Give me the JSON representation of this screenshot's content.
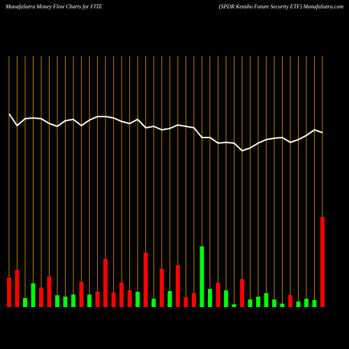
{
  "chart_data": {
    "type": "bar",
    "title": "MunafaSutra  Money Flow  Charts for FITE",
    "subtitle": "(SPDR Kensho  Future   Security ETF) MunafaSutra.com",
    "categories": [
      null,
      null,
      null,
      null,
      null,
      null,
      null,
      null,
      null,
      null,
      null,
      null,
      null,
      null,
      null,
      null,
      null,
      null,
      null,
      null,
      null,
      null,
      null,
      null,
      null,
      null,
      null,
      null,
      null,
      null,
      null,
      null,
      null,
      null,
      null,
      null,
      null,
      null,
      null,
      null
    ],
    "series": [
      {
        "color": "bars",
        "values": [
          42,
          53,
          13,
          34,
          28,
          44,
          17,
          15,
          18,
          36,
          18,
          22,
          69,
          21,
          35,
          24,
          22,
          78,
          12,
          55,
          23,
          60,
          14,
          20,
          87,
          26,
          35,
          24,
          4,
          40,
          11,
          15,
          20,
          11,
          5,
          17,
          8,
          12,
          10,
          129
        ],
        "colors": [
          "#ff0000",
          "#ff0000",
          "#00ff00",
          "#00ff00",
          "#ff0000",
          "#ff0000",
          "#00ff00",
          "#00ff00",
          "#00ff00",
          "#ff0000",
          "#00ff00",
          "#ff0000",
          "#ff0000",
          "#ff0000",
          "#ff0000",
          "#ff0000",
          "#00ff00",
          "#ff0000",
          "#00ff00",
          "#ff0000",
          "#00ff00",
          "#ff0000",
          "#ff0000",
          "#ff0000",
          "#00ff00",
          "#00ff00",
          "#ff0000",
          "#00ff00",
          "#00ff00",
          "#ff0000",
          "#00ff00",
          "#00ff00",
          "#00ff00",
          "#00ff00",
          "#00ff00",
          "#ff0000",
          "#00ff00",
          "#00ff00",
          "#00ff00",
          "#ff0000"
        ]
      },
      {
        "type": "line",
        "color": "#ffffff",
        "values": [
          277,
          260,
          270,
          271,
          270,
          263,
          259,
          267,
          269,
          260,
          268,
          273,
          273,
          271,
          266,
          263,
          269,
          257,
          259,
          254,
          256,
          261,
          259,
          257,
          243,
          243,
          235,
          236,
          235,
          224,
          228,
          235,
          240,
          242,
          243,
          236,
          240,
          246,
          254,
          250
        ]
      }
    ],
    "grid_color": "#b8860b",
    "ylim": [
      0,
      360
    ]
  }
}
